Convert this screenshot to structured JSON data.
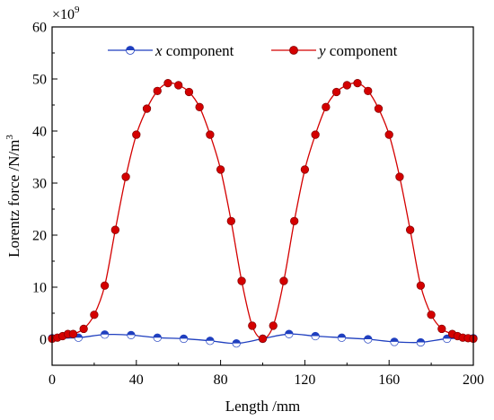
{
  "chart_data": {
    "type": "line",
    "title": "",
    "xlabel": "Length /mm",
    "ylabel_main": "Lorentz force /N/m",
    "ylabel_sup": "3",
    "y_multiplier_base": "×10",
    "y_multiplier_exp": "9",
    "xlim": [
      0,
      200
    ],
    "ylim": [
      -5,
      60
    ],
    "xticks": [
      0,
      40,
      80,
      120,
      160,
      200
    ],
    "yticks": [
      0,
      10,
      20,
      30,
      40,
      50,
      60
    ],
    "legend_position": "top",
    "series": [
      {
        "name_italic": "x",
        "name_rest": " component",
        "color": "#1f3fbf",
        "marker": "half-filled-circle",
        "x": [
          0,
          12.5,
          25,
          37.5,
          50,
          62.5,
          75,
          87.5,
          100,
          112.5,
          125,
          137.5,
          150,
          162.5,
          175,
          187.5,
          200
        ],
        "y": [
          0.2,
          0.3,
          0.9,
          0.8,
          0.3,
          0.1,
          -0.3,
          -0.8,
          0.1,
          1.0,
          0.6,
          0.3,
          0.0,
          -0.5,
          -0.6,
          0.1,
          0.2
        ]
      },
      {
        "name_italic": "y",
        "name_rest": " component",
        "color": "#d40000",
        "marker": "circle",
        "x": [
          0,
          2.5,
          5,
          7.5,
          10,
          15,
          20,
          25,
          30,
          35,
          40,
          45,
          50,
          55,
          60,
          65,
          70,
          75,
          80,
          85,
          90,
          95,
          100,
          105,
          110,
          115,
          120,
          125,
          130,
          135,
          140,
          145,
          150,
          155,
          160,
          165,
          170,
          175,
          180,
          185,
          190,
          192.5,
          195,
          197.5,
          200
        ],
        "y": [
          0.1,
          0.3,
          0.6,
          1.0,
          1.0,
          2.0,
          4.7,
          10.3,
          21.0,
          31.2,
          39.3,
          44.3,
          47.7,
          49.2,
          48.8,
          47.5,
          44.6,
          39.3,
          32.6,
          22.7,
          11.2,
          2.6,
          0.1,
          2.6,
          11.2,
          22.7,
          32.6,
          39.3,
          44.6,
          47.5,
          48.8,
          49.2,
          47.7,
          44.3,
          39.3,
          31.2,
          21.0,
          10.3,
          4.7,
          2.0,
          1.0,
          0.6,
          0.3,
          0.2,
          0.1
        ]
      }
    ]
  }
}
